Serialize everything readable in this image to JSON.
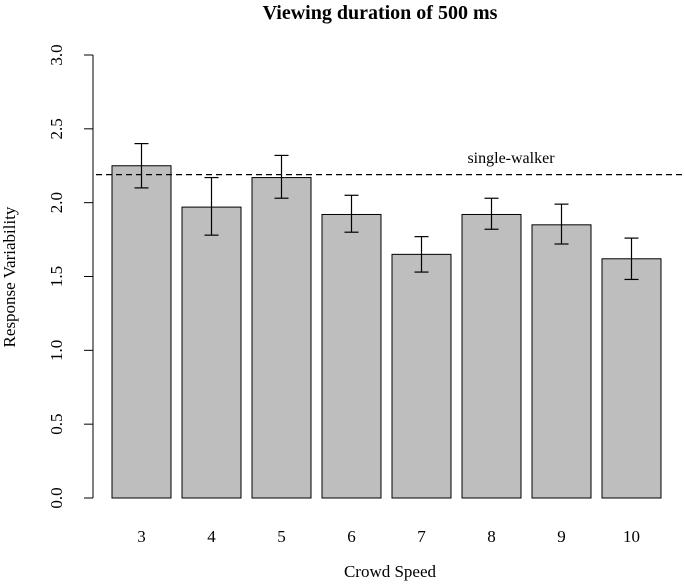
{
  "chart_data": {
    "type": "bar",
    "title": "Viewing duration of 500 ms",
    "xlabel": "Crowd Speed",
    "ylabel": "Response Variability",
    "categories": [
      "3",
      "4",
      "5",
      "6",
      "7",
      "8",
      "9",
      "10"
    ],
    "values": [
      2.25,
      1.97,
      2.17,
      1.92,
      1.65,
      1.92,
      1.85,
      1.62
    ],
    "error_low": [
      2.1,
      1.78,
      2.03,
      1.8,
      1.53,
      1.82,
      1.72,
      1.48
    ],
    "error_high": [
      2.4,
      2.17,
      2.32,
      2.05,
      1.77,
      2.03,
      1.99,
      1.76
    ],
    "ylim": [
      0,
      3
    ],
    "yticks": [
      "0.0",
      "0.5",
      "1.0",
      "1.5",
      "2.0",
      "2.5",
      "3.0"
    ],
    "bar_color": "#bebebe",
    "reference_line": {
      "value": 2.19,
      "label": "single-walker",
      "style": "dashed"
    },
    "grid": false
  }
}
